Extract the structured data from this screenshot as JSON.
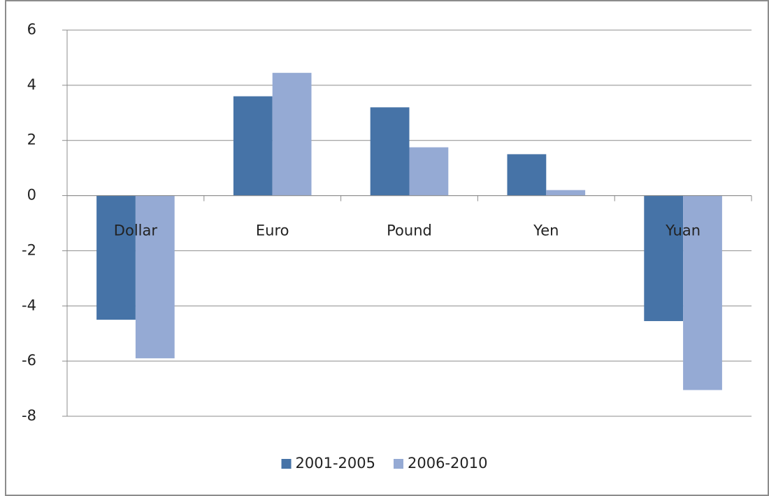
{
  "chart_data": {
    "type": "bar",
    "categories": [
      "Dollar",
      "Euro",
      "Pound",
      "Yen",
      "Yuan"
    ],
    "series": [
      {
        "name": "2001-2005",
        "color": "#4673a7",
        "values": [
          -4.5,
          3.6,
          3.2,
          1.5,
          -4.55
        ]
      },
      {
        "name": "2006-2010",
        "color": "#95aad4",
        "values": [
          -5.9,
          4.45,
          1.75,
          0.2,
          -7.05
        ]
      }
    ],
    "ylim": [
      -8,
      6
    ],
    "yticks": [
      -8,
      -6,
      -4,
      -2,
      0,
      2,
      4,
      6
    ],
    "grid": true,
    "legend": "bottom"
  }
}
